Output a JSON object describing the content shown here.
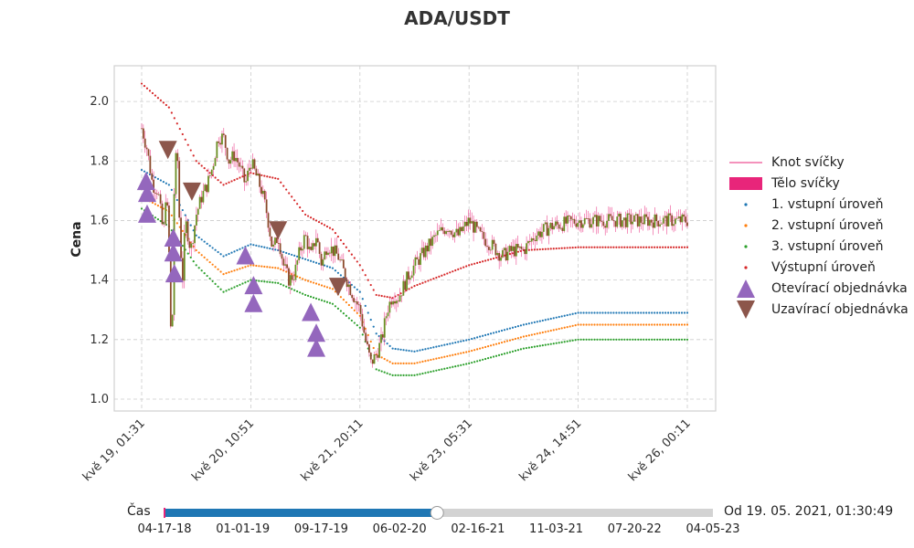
{
  "chart_data": {
    "type": "line",
    "title": "ADA/USDT",
    "ylabel": "Cena",
    "ylim": [
      0.96,
      2.12
    ],
    "y_ticks": [
      "1.0",
      "1.2",
      "1.4",
      "1.6",
      "1.8",
      "2.0"
    ],
    "x_tick_labels": [
      "kvě 19, 01:31",
      "kvě 20, 10:51",
      "kvě 21, 20:11",
      "kvě 23, 05:31",
      "kvě 24, 14:51",
      "kvě 26, 00:11"
    ],
    "grid": true,
    "legend_position": "right",
    "legend": [
      "Knot svíčky",
      "Tělo svíčky",
      "1. vstupní úroveň",
      "2. vstupní úroveň",
      "3. vstupní úroveň",
      "Výstupní úroveň",
      "Otevírací objednávka",
      "Uzavírací objednávka"
    ],
    "colors": {
      "wick": "#e8257a",
      "body": "#e8257a",
      "candle_shades": [
        "#8b4a2b",
        "#6b8e23"
      ],
      "entry1": "#1f77b4",
      "entry2": "#ff7f0e",
      "entry3": "#2ca02c",
      "exit": "#d62728",
      "open_order": "#9467bd",
      "close_order": "#8c564b"
    },
    "x_domain": [
      0,
      10
    ],
    "price_points": [
      [
        0,
        1.91
      ],
      [
        0.1,
        1.84
      ],
      [
        0.2,
        1.72
      ],
      [
        0.3,
        1.7
      ],
      [
        0.4,
        1.55
      ],
      [
        0.45,
        1.72
      ],
      [
        0.5,
        1.5
      ],
      [
        0.55,
        1.1
      ],
      [
        0.6,
        1.75
      ],
      [
        0.65,
        1.85
      ],
      [
        0.7,
        1.55
      ],
      [
        0.75,
        1.4
      ],
      [
        0.8,
        1.6
      ],
      [
        0.9,
        1.5
      ],
      [
        1.0,
        1.62
      ],
      [
        1.1,
        1.68
      ],
      [
        1.2,
        1.72
      ],
      [
        1.3,
        1.78
      ],
      [
        1.4,
        1.88
      ],
      [
        1.5,
        1.88
      ],
      [
        1.6,
        1.8
      ],
      [
        1.7,
        1.82
      ],
      [
        1.8,
        1.78
      ],
      [
        1.9,
        1.72
      ],
      [
        2.0,
        1.8
      ],
      [
        2.1,
        1.75
      ],
      [
        2.2,
        1.7
      ],
      [
        2.3,
        1.62
      ],
      [
        2.4,
        1.5
      ],
      [
        2.5,
        1.55
      ],
      [
        2.6,
        1.45
      ],
      [
        2.7,
        1.4
      ],
      [
        2.8,
        1.42
      ],
      [
        2.9,
        1.5
      ],
      [
        3.0,
        1.55
      ],
      [
        3.1,
        1.48
      ],
      [
        3.2,
        1.55
      ],
      [
        3.3,
        1.45
      ],
      [
        3.4,
        1.52
      ],
      [
        3.5,
        1.5
      ],
      [
        3.6,
        1.48
      ],
      [
        3.8,
        1.38
      ],
      [
        4.0,
        1.3
      ],
      [
        4.1,
        1.2
      ],
      [
        4.2,
        1.12
      ],
      [
        4.3,
        1.15
      ],
      [
        4.4,
        1.2
      ],
      [
        4.5,
        1.3
      ],
      [
        4.6,
        1.35
      ],
      [
        4.7,
        1.34
      ],
      [
        4.8,
        1.38
      ],
      [
        4.9,
        1.42
      ],
      [
        5.0,
        1.45
      ],
      [
        5.2,
        1.5
      ],
      [
        5.4,
        1.55
      ],
      [
        5.6,
        1.58
      ],
      [
        5.8,
        1.55
      ],
      [
        6.0,
        1.6
      ],
      [
        6.2,
        1.55
      ],
      [
        6.4,
        1.52
      ],
      [
        6.6,
        1.48
      ],
      [
        6.8,
        1.5
      ],
      [
        7.0,
        1.5
      ],
      [
        7.2,
        1.55
      ],
      [
        7.5,
        1.58
      ],
      [
        8.0,
        1.6
      ],
      [
        9.0,
        1.6
      ],
      [
        10.0,
        1.6
      ]
    ],
    "series": [
      {
        "name": "1. vstupní úroveň",
        "points": [
          [
            0,
            1.77
          ],
          [
            0.5,
            1.72
          ],
          [
            1.0,
            1.55
          ],
          [
            1.5,
            1.48
          ],
          [
            2.0,
            1.52
          ],
          [
            2.5,
            1.5
          ],
          [
            3.0,
            1.47
          ],
          [
            3.5,
            1.44
          ],
          [
            4.0,
            1.36
          ],
          [
            4.3,
            1.22
          ],
          [
            4.6,
            1.17
          ],
          [
            5.0,
            1.16
          ],
          [
            6.0,
            1.2
          ],
          [
            7.0,
            1.25
          ],
          [
            8.0,
            1.29
          ],
          [
            10.0,
            1.29
          ]
        ]
      },
      {
        "name": "2. vstupní úroveň",
        "points": [
          [
            0,
            1.68
          ],
          [
            0.5,
            1.63
          ],
          [
            1.0,
            1.5
          ],
          [
            1.5,
            1.42
          ],
          [
            2.0,
            1.45
          ],
          [
            2.5,
            1.44
          ],
          [
            3.0,
            1.4
          ],
          [
            3.5,
            1.37
          ],
          [
            4.0,
            1.28
          ],
          [
            4.3,
            1.15
          ],
          [
            4.6,
            1.12
          ],
          [
            5.0,
            1.12
          ],
          [
            6.0,
            1.16
          ],
          [
            7.0,
            1.21
          ],
          [
            8.0,
            1.25
          ],
          [
            10.0,
            1.25
          ]
        ]
      },
      {
        "name": "3. vstupní úroveň",
        "points": [
          [
            0,
            1.64
          ],
          [
            0.5,
            1.58
          ],
          [
            1.0,
            1.45
          ],
          [
            1.5,
            1.36
          ],
          [
            2.0,
            1.4
          ],
          [
            2.5,
            1.39
          ],
          [
            3.0,
            1.35
          ],
          [
            3.5,
            1.32
          ],
          [
            4.0,
            1.24
          ],
          [
            4.3,
            1.1
          ],
          [
            4.6,
            1.08
          ],
          [
            5.0,
            1.08
          ],
          [
            6.0,
            1.12
          ],
          [
            7.0,
            1.17
          ],
          [
            8.0,
            1.2
          ],
          [
            10.0,
            1.2
          ]
        ]
      },
      {
        "name": "Výstupní úroveň",
        "points": [
          [
            0,
            2.06
          ],
          [
            0.5,
            1.98
          ],
          [
            1.0,
            1.8
          ],
          [
            1.5,
            1.72
          ],
          [
            2.0,
            1.76
          ],
          [
            2.5,
            1.74
          ],
          [
            3.0,
            1.62
          ],
          [
            3.5,
            1.57
          ],
          [
            4.0,
            1.45
          ],
          [
            4.3,
            1.35
          ],
          [
            4.6,
            1.34
          ],
          [
            5.0,
            1.38
          ],
          [
            6.0,
            1.45
          ],
          [
            7.0,
            1.5
          ],
          [
            8.0,
            1.51
          ],
          [
            10.0,
            1.51
          ]
        ]
      }
    ],
    "open_orders": [
      [
        0.08,
        1.73
      ],
      [
        0.1,
        1.69
      ],
      [
        0.1,
        1.62
      ],
      [
        0.58,
        1.54
      ],
      [
        0.58,
        1.49
      ],
      [
        0.6,
        1.42
      ],
      [
        1.9,
        1.48
      ],
      [
        2.05,
        1.38
      ],
      [
        2.05,
        1.32
      ],
      [
        3.1,
        1.29
      ],
      [
        3.2,
        1.22
      ],
      [
        3.2,
        1.17
      ]
    ],
    "close_orders": [
      [
        0.48,
        1.84
      ],
      [
        0.92,
        1.7
      ],
      [
        2.5,
        1.57
      ],
      [
        3.6,
        1.38
      ]
    ]
  },
  "slider": {
    "label": "Čas",
    "value_text": "Od 19. 05. 2021, 01:30:49",
    "fraction": 0.497,
    "tick_labels": [
      "04-17-18",
      "01-01-19",
      "09-17-19",
      "06-02-20",
      "02-16-21",
      "11-03-21",
      "07-20-22",
      "04-05-23"
    ]
  }
}
